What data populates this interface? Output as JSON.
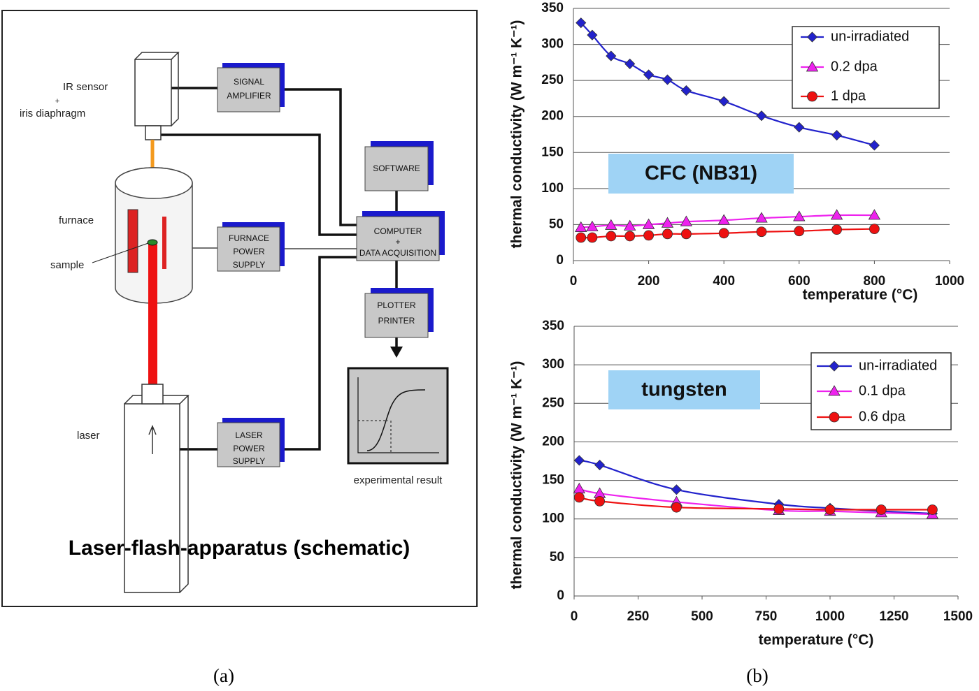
{
  "diagram": {
    "title": "Laser-flash-apparatus (schematic)",
    "ir_sensor": [
      "IR sensor",
      "+",
      "iris diaphragm"
    ],
    "furnace": "furnace",
    "sample": "sample",
    "laser": "laser",
    "signal_amplifier": [
      "SIGNAL",
      "AMPLIFIER"
    ],
    "furnace_power_supply": [
      "FURNACE",
      "POWER",
      "SUPPLY"
    ],
    "laser_power_supply": [
      "LASER",
      "POWER",
      "SUPPLY"
    ],
    "software": "SOFTWARE",
    "computer": [
      "COMPUTER",
      "+",
      "DATA ACQUISITION"
    ],
    "plotter": [
      "PLOTTER",
      "PRINTER"
    ],
    "result": "experimental result"
  },
  "captions": [
    "(a)",
    "(b)"
  ],
  "chart_data": [
    {
      "type": "line",
      "ylabel": "thermal conductivity (W m⁻¹ K⁻¹)",
      "xlabel": "temperature (°C)",
      "annotation": "CFC (NB31)",
      "x": [
        20,
        50,
        100,
        150,
        200,
        250,
        300,
        400,
        500,
        600,
        700,
        800
      ],
      "series": [
        {
          "name": "un-irradiated",
          "color": "#2222cc",
          "marker": "diamond",
          "values": [
            330,
            313,
            284,
            273,
            258,
            251,
            236,
            221,
            201,
            185,
            174,
            160
          ]
        },
        {
          "name": "0.2 dpa",
          "color": "#ee22ee",
          "marker": "triangle",
          "values": [
            46,
            47,
            49,
            48,
            50,
            52,
            54,
            56,
            59,
            61,
            63,
            63
          ]
        },
        {
          "name": "1 dpa",
          "color": "#ee1111",
          "marker": "circle",
          "values": [
            32,
            32,
            34,
            34,
            35,
            37,
            37,
            38,
            40,
            41,
            43,
            44
          ]
        }
      ],
      "xlim": [
        0,
        1000
      ],
      "xticks": [
        0,
        200,
        400,
        600,
        800,
        1000
      ],
      "ylim": [
        0,
        350
      ],
      "yticks": [
        0,
        50,
        100,
        150,
        200,
        250,
        300,
        350
      ],
      "grid": true
    },
    {
      "type": "line",
      "ylabel": "thermal conductivity (W m⁻¹ K⁻¹)",
      "xlabel": "temperature (°C)",
      "annotation": "tungsten",
      "x": [
        20,
        100,
        400,
        800,
        1000,
        1200,
        1400
      ],
      "series": [
        {
          "name": "un-irradiated",
          "color": "#2222cc",
          "marker": "diamond",
          "values": [
            176,
            170,
            138,
            119,
            114,
            110,
            107
          ]
        },
        {
          "name": "0.1 dpa",
          "color": "#ee22ee",
          "marker": "triangle",
          "values": [
            139,
            133,
            122,
            111,
            110,
            108,
            106
          ]
        },
        {
          "name": "0.6 dpa",
          "color": "#ee1111",
          "marker": "circle",
          "values": [
            128,
            123,
            115,
            113,
            112,
            112,
            112
          ]
        }
      ],
      "xlim": [
        0,
        1500
      ],
      "xticks": [
        0,
        250,
        500,
        750,
        1000,
        1250,
        1500
      ],
      "ylim": [
        0,
        350
      ],
      "yticks": [
        0,
        50,
        100,
        150,
        200,
        250,
        300,
        350
      ],
      "grid": true
    }
  ]
}
